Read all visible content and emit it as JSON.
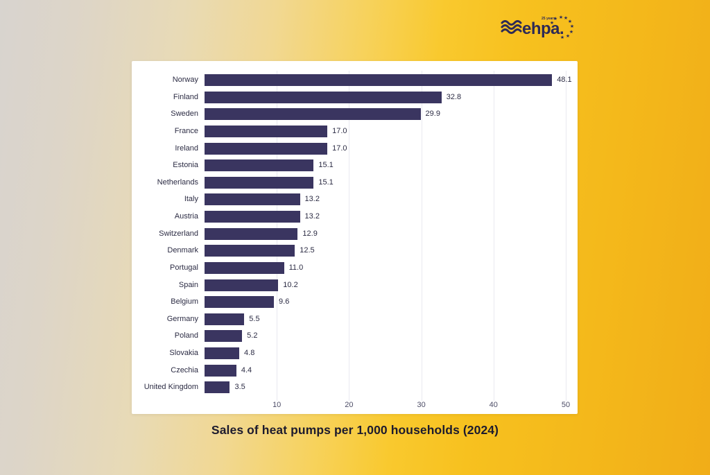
{
  "logo": {
    "brand": "ehpa.",
    "tagline": "25 years",
    "color": "#2d2a56"
  },
  "chart_data": {
    "type": "bar",
    "orientation": "horizontal",
    "title": "Sales of heat pumps per 1,000 households (2024)",
    "xlabel": "",
    "ylabel": "",
    "categories": [
      "Norway",
      "Finland",
      "Sweden",
      "France",
      "Ireland",
      "Estonia",
      "Netherlands",
      "Italy",
      "Austria",
      "Switzerland",
      "Denmark",
      "Portugal",
      "Spain",
      "Belgium",
      "Germany",
      "Poland",
      "Slovakia",
      "Czechia",
      "United Kingdom"
    ],
    "values": [
      48.1,
      32.8,
      29.9,
      17.0,
      17.0,
      15.1,
      15.1,
      13.2,
      13.2,
      12.9,
      12.5,
      11.0,
      10.2,
      9.6,
      5.5,
      5.2,
      4.8,
      4.4,
      3.5
    ],
    "value_labels": [
      "48.1",
      "32.8",
      "29.9",
      "17.0",
      "17.0",
      "15.1",
      "15.1",
      "13.2",
      "13.2",
      "12.9",
      "12.5",
      "11.0",
      "10.2",
      "9.6",
      "5.5",
      "5.2",
      "4.8",
      "4.4",
      "3.5"
    ],
    "xticks": [
      10,
      20,
      30,
      40,
      50
    ],
    "xlim": [
      0,
      50
    ],
    "grid": "vertical",
    "legend": "none",
    "bar_color": "#3a3560",
    "plot_background": "#ffffff"
  }
}
